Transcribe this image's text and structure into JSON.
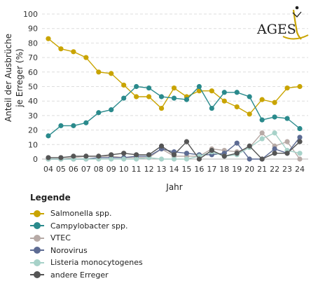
{
  "logo": {
    "text": "AGES"
  },
  "chart_data": {
    "type": "line",
    "title": "",
    "xlabel": "Jahr",
    "ylabel_lines": [
      "Anteil der Ausbrüche",
      "je Erreger (%)"
    ],
    "ylim": [
      0,
      100
    ],
    "yticks": [
      0,
      10,
      20,
      30,
      40,
      50,
      60,
      70,
      80,
      90,
      100
    ],
    "grid": true,
    "legend_position": "below",
    "categories": [
      "04",
      "05",
      "06",
      "07",
      "08",
      "09",
      "10",
      "11",
      "12",
      "13",
      "14",
      "15",
      "16",
      "17",
      "18",
      "19",
      "20",
      "21",
      "22",
      "23",
      "24"
    ],
    "series": [
      {
        "name": "Salmonella spp.",
        "color": "#c9a400",
        "values": [
          83,
          76,
          74,
          70,
          60,
          59,
          51,
          43,
          43,
          35,
          49,
          43,
          47,
          47,
          40,
          36,
          31,
          41,
          39,
          49,
          50
        ]
      },
      {
        "name": "Campylobacter spp.",
        "color": "#2a8a8c",
        "values": [
          16,
          23,
          23,
          25,
          32,
          34,
          42,
          50,
          49,
          43,
          42,
          41,
          50,
          35,
          46,
          46,
          43,
          27,
          29,
          28,
          21
        ]
      },
      {
        "name": "VTEC",
        "color": "#b7aaa6",
        "values": [
          0,
          0,
          1,
          2,
          2,
          2,
          1,
          1,
          1,
          7,
          2,
          2,
          2,
          7,
          6,
          5,
          8,
          18,
          9,
          12,
          0
        ]
      },
      {
        "name": "Norovirus",
        "color": "#5d6b93",
        "values": [
          0,
          0,
          0,
          0,
          1,
          1,
          1,
          2,
          2,
          7,
          5,
          4,
          3,
          3,
          4,
          11,
          0,
          0,
          7,
          4,
          15
        ]
      },
      {
        "name": "Listeria monocytogenes",
        "color": "#a7d2c9",
        "values": [
          0,
          0,
          0,
          0,
          0,
          0,
          0,
          0,
          1,
          0,
          0,
          0,
          2,
          5,
          2,
          3,
          8,
          14,
          18,
          6,
          4
        ]
      },
      {
        "name": "andere Erreger",
        "color": "#555555",
        "values": [
          1,
          1,
          2,
          2,
          2,
          3,
          4,
          3,
          3,
          9,
          3,
          12,
          0,
          6,
          2,
          4,
          9,
          0,
          4,
          4,
          12
        ]
      }
    ]
  },
  "legend": {
    "title": "Legende"
  }
}
